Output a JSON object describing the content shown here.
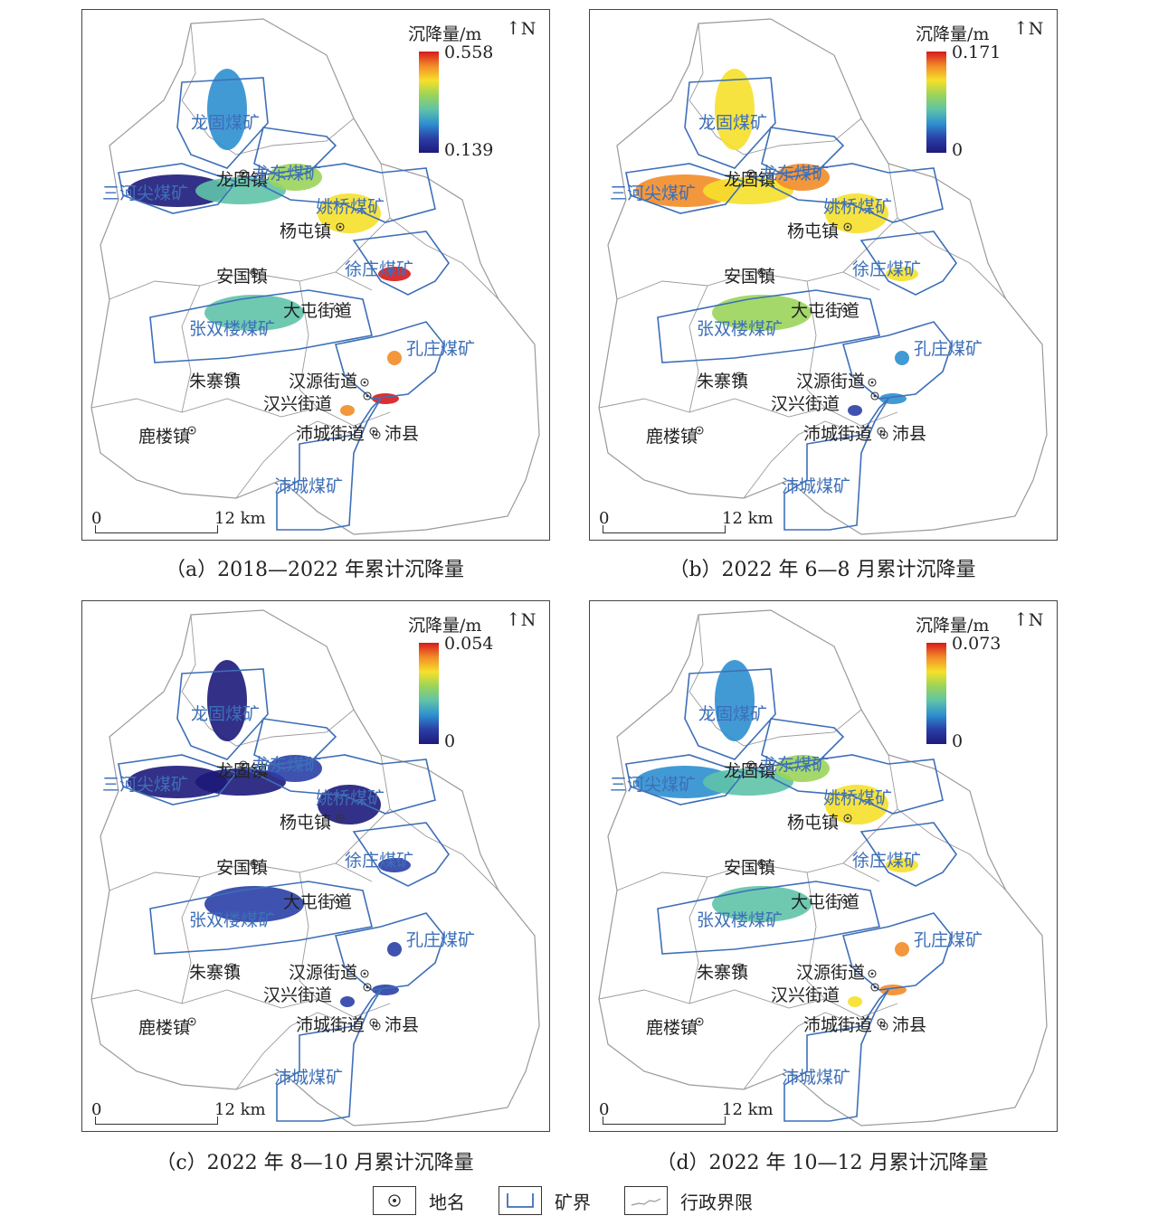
{
  "legend_title": "沉降量/m",
  "north_label": "N",
  "scale": {
    "zero": "0",
    "distance": "12 km"
  },
  "towns": [
    "龙固镇",
    "杨屯镇",
    "安国镇",
    "大屯街道",
    "朱寨镇",
    "汉源街道",
    "汉兴街道",
    "沛城街道",
    "沛县",
    "鹿楼镇"
  ],
  "mines": [
    "龙固煤矿",
    "龙东煤矿",
    "三河尖煤矿",
    "姚桥煤矿",
    "徐庄煤矿",
    "张双楼煤矿",
    "孔庄煤矿",
    "沛城煤矿"
  ],
  "panels": [
    {
      "caption": "（a）2018—2022 年累计沉降量",
      "max": "0.558",
      "min": "0.139"
    },
    {
      "caption": "（b）2022 年 6—8 月累计沉降量",
      "max": "0.171",
      "min": "0"
    },
    {
      "caption": "（c）2022 年 8—10 月累计沉降量",
      "max": "0.054",
      "min": "0"
    },
    {
      "caption": "（d）2022 年 10—12 月累计沉降量",
      "max": "0.073",
      "min": "0"
    }
  ],
  "map_legend": {
    "place": "地名",
    "mine_boundary": "矿界",
    "admin_boundary": "行政界限"
  },
  "colors": {
    "mine_boundary": "#3d6fb8",
    "admin_boundary": "#9a9a9a",
    "low": "#1d1a7a",
    "mid": "#f6e02a",
    "high": "#d7191c"
  }
}
